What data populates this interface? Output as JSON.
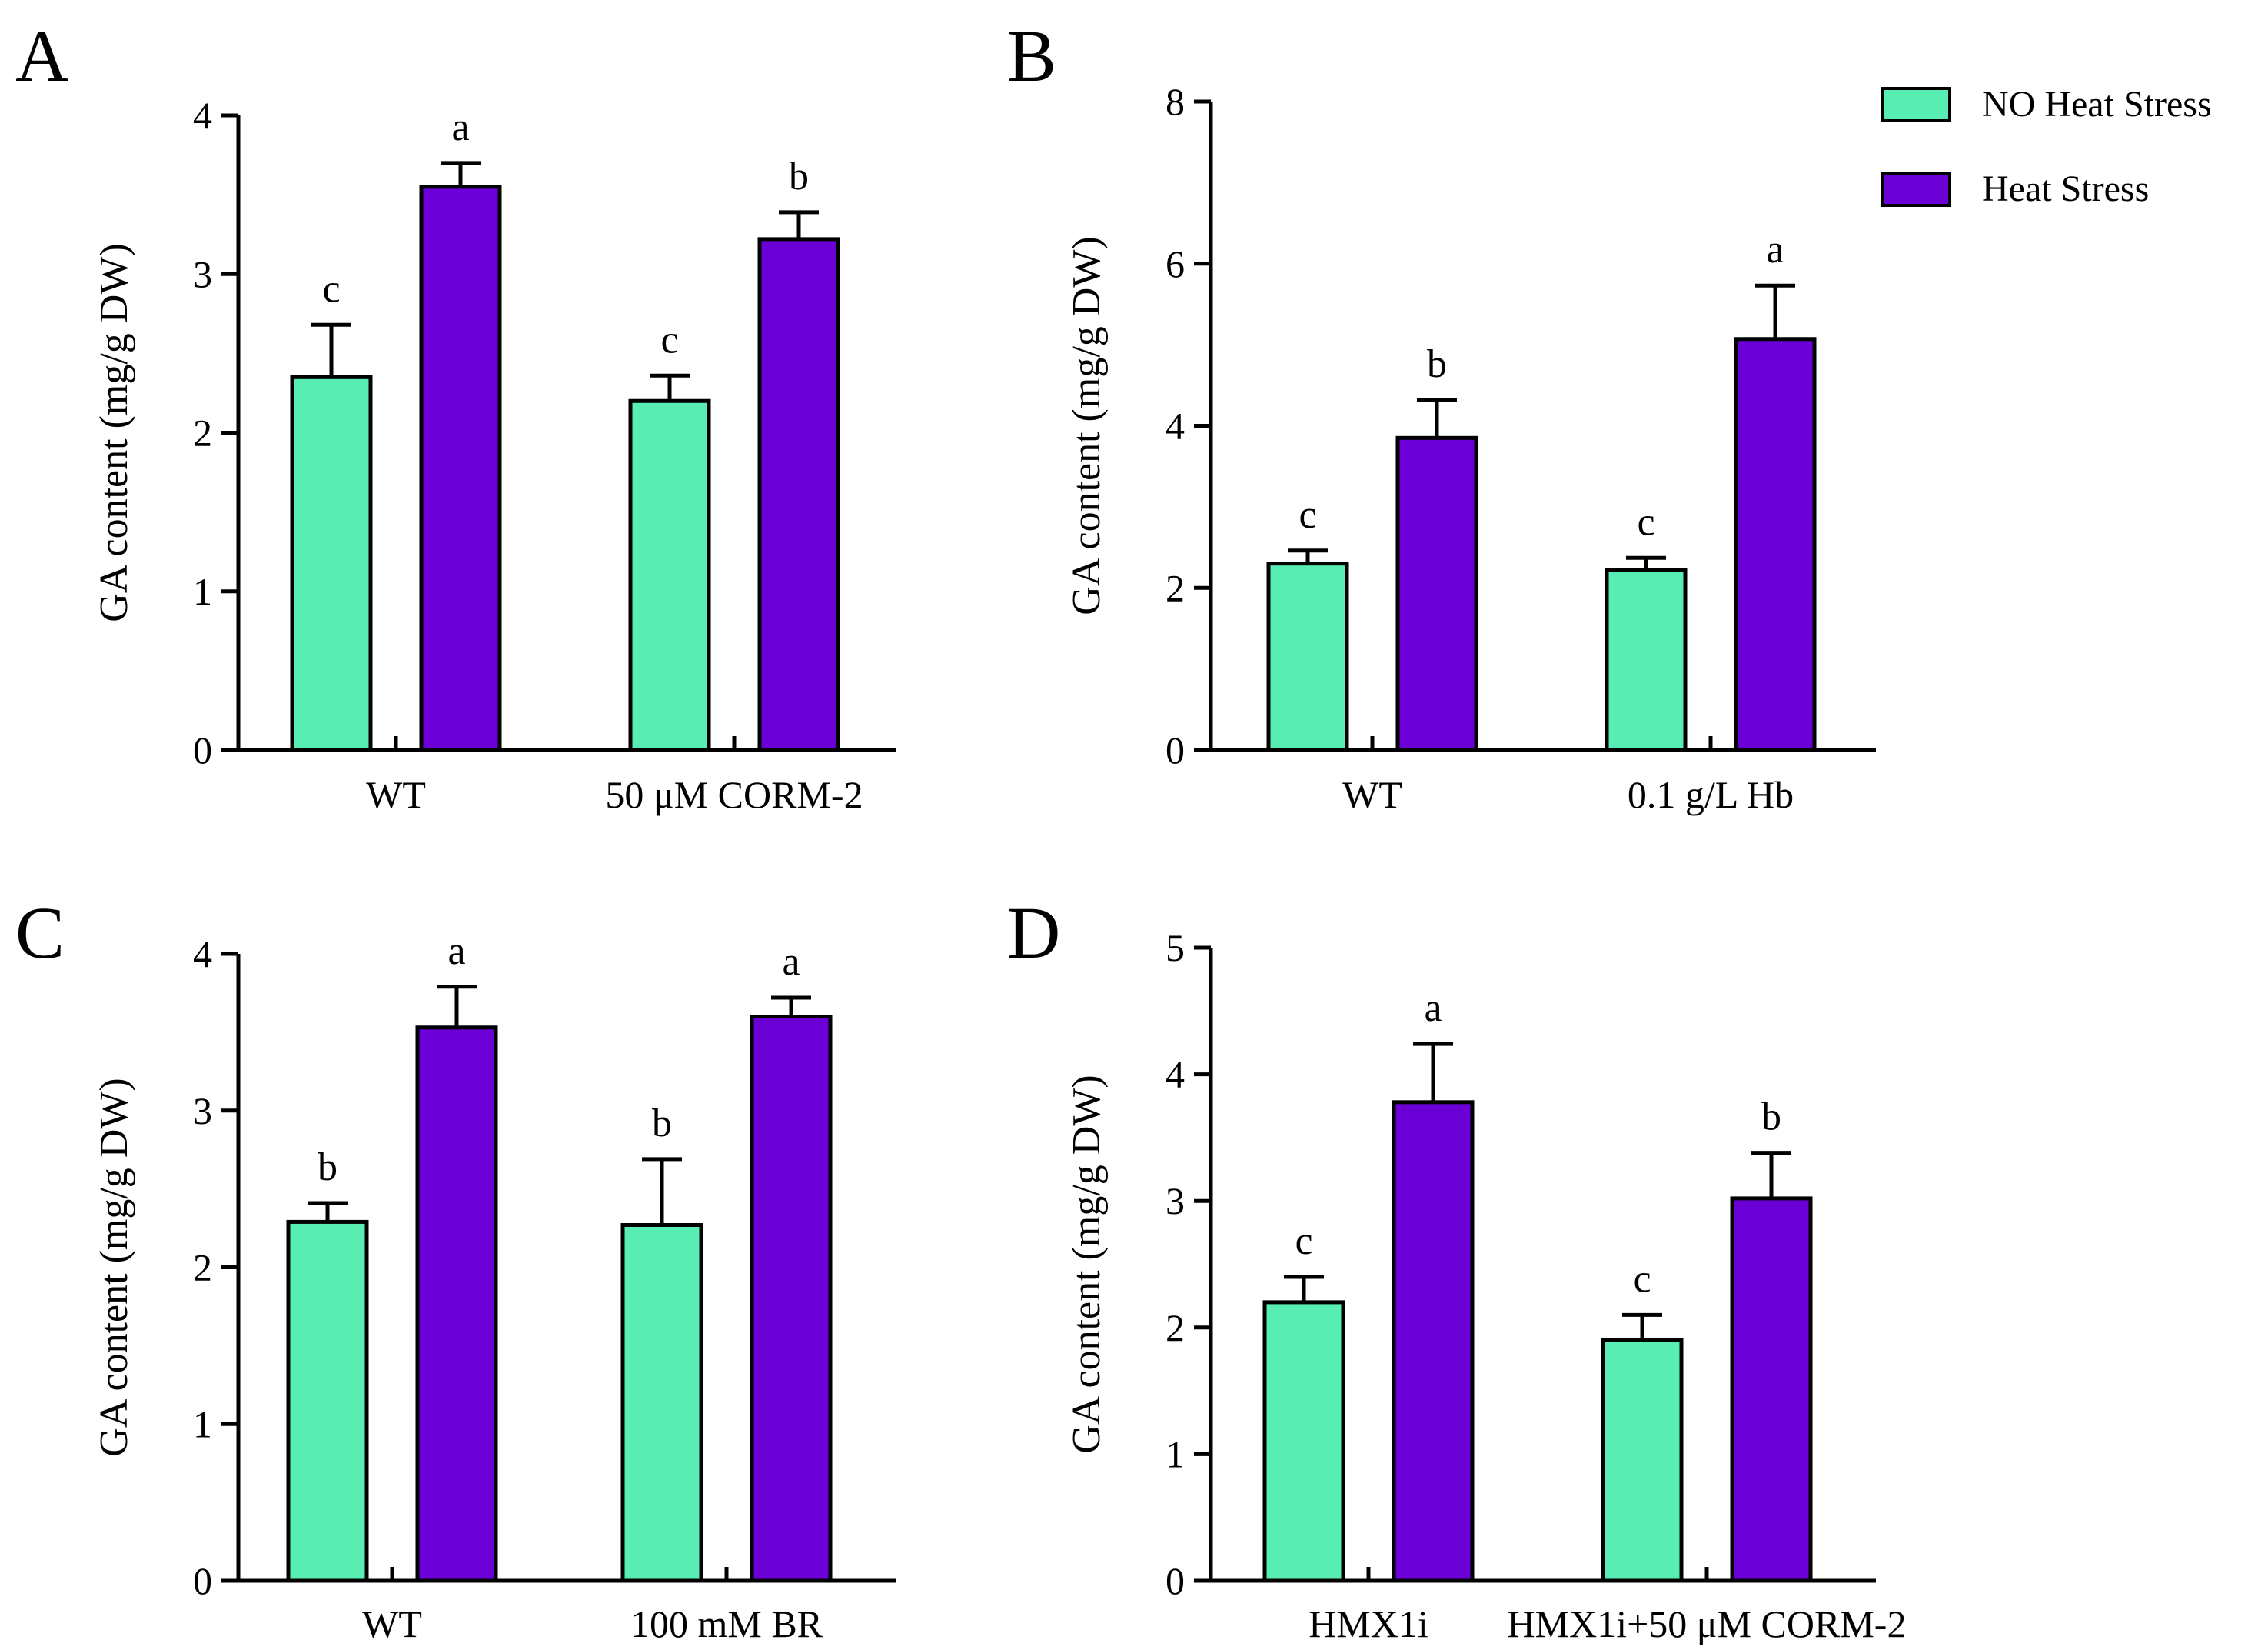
{
  "colors": {
    "no_heat": "#58EDB3",
    "heat": "#6B00D6"
  },
  "legend": [
    {
      "label": "NO Heat Stress",
      "color": "#58EDB3"
    },
    {
      "label": "Heat Stress",
      "color": "#6B00D6"
    }
  ],
  "chart_data": [
    {
      "panel": "A",
      "type": "bar",
      "ylabel": "GA content (mg/g DW)",
      "ylim": [
        0,
        4
      ],
      "yticks": [
        0,
        1,
        2,
        3,
        4
      ],
      "categories": [
        "WT",
        "50 μM CORM-2"
      ],
      "series": [
        {
          "name": "NO Heat Stress",
          "values": [
            2.35,
            2.2
          ],
          "errors": [
            0.33,
            0.16
          ],
          "labels": [
            "c",
            "c"
          ]
        },
        {
          "name": "Heat Stress",
          "values": [
            3.55,
            3.22
          ],
          "errors": [
            0.15,
            0.17
          ],
          "labels": [
            "a",
            "b"
          ]
        }
      ]
    },
    {
      "panel": "B",
      "type": "bar",
      "ylabel": "GA content (mg/g DW)",
      "ylim": [
        0,
        8
      ],
      "yticks": [
        0,
        2,
        4,
        6,
        8
      ],
      "categories": [
        "WT",
        "0.1 g/L Hb"
      ],
      "series": [
        {
          "name": "NO Heat Stress",
          "values": [
            2.3,
            2.22
          ],
          "errors": [
            0.16,
            0.15
          ],
          "labels": [
            "c",
            "c"
          ]
        },
        {
          "name": "Heat Stress",
          "values": [
            3.85,
            5.07
          ],
          "errors": [
            0.47,
            0.66
          ],
          "labels": [
            "b",
            "a"
          ]
        }
      ]
    },
    {
      "panel": "C",
      "type": "bar",
      "ylabel": "GA content (mg/g DW)",
      "ylim": [
        0,
        4
      ],
      "yticks": [
        0,
        1,
        2,
        3,
        4
      ],
      "categories": [
        "WT",
        "100 mM BR"
      ],
      "series": [
        {
          "name": "NO Heat Stress",
          "values": [
            2.29,
            2.27
          ],
          "errors": [
            0.12,
            0.42
          ],
          "labels": [
            "b",
            "b"
          ]
        },
        {
          "name": "Heat Stress",
          "values": [
            3.53,
            3.6
          ],
          "errors": [
            0.26,
            0.12
          ],
          "labels": [
            "a",
            "a"
          ]
        }
      ]
    },
    {
      "panel": "D",
      "type": "bar",
      "ylabel": "GA content (mg/g DW)",
      "ylim": [
        0,
        5
      ],
      "yticks": [
        0,
        1,
        2,
        3,
        4,
        5
      ],
      "categories": [
        "HMX1i",
        "HMX1i+50 μM CORM-2"
      ],
      "series": [
        {
          "name": "NO Heat Stress",
          "values": [
            2.2,
            1.9
          ],
          "errors": [
            0.2,
            0.2
          ],
          "labels": [
            "c",
            "c"
          ]
        },
        {
          "name": "Heat Stress",
          "values": [
            3.78,
            3.02
          ],
          "errors": [
            0.46,
            0.36
          ],
          "labels": [
            "a",
            "b"
          ]
        }
      ]
    }
  ]
}
